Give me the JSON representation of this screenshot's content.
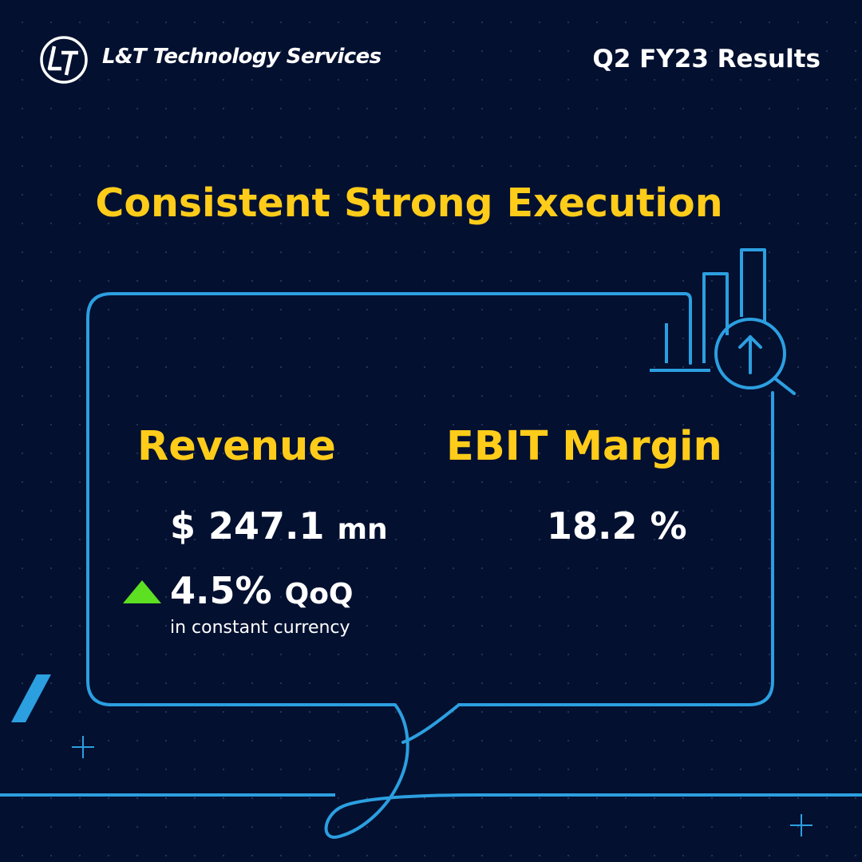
{
  "brand": {
    "name": "L&T Technology Services",
    "logo_icon": "lt-logo-icon"
  },
  "header": {
    "period": "Q2 FY23 Results"
  },
  "headline": "Consistent Strong Execution",
  "metrics": {
    "revenue": {
      "label": "Revenue",
      "value": "$ 247.1",
      "unit": "mn",
      "growth_value": "4.5%",
      "growth_unit": "QoQ",
      "growth_direction": "up",
      "growth_note": "in constant currency"
    },
    "ebit_margin": {
      "label": "EBIT Margin",
      "value": "18.2 %"
    }
  },
  "decor_icons": [
    "bar-chart-icon",
    "magnifier-up-arrow-icon",
    "speech-bubble-outline",
    "plus-sparkle-icon"
  ],
  "colors": {
    "background": "#031030",
    "accent_yellow": "#ffcc1a",
    "line_blue": "#2c9fe0",
    "growth_green": "#5ce021",
    "text_white": "#ffffff"
  }
}
